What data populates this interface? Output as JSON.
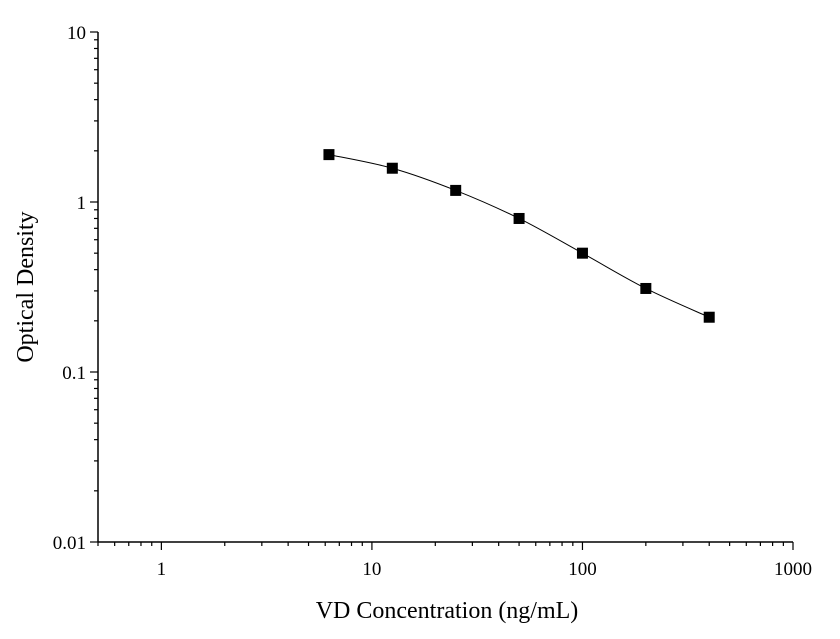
{
  "chart_data": {
    "type": "scatter",
    "title": "",
    "xlabel": "VD Concentration (ng/mL)",
    "ylabel": "Optical Density",
    "x_scale": "log",
    "y_scale": "log",
    "xlim": [
      0.5,
      1000
    ],
    "ylim": [
      0.01,
      10
    ],
    "x_ticks": [
      1,
      10,
      100,
      1000
    ],
    "x_tick_labels": [
      "1",
      "10",
      "100",
      "1000"
    ],
    "y_ticks": [
      0.01,
      0.1,
      1,
      10
    ],
    "y_tick_labels": [
      "0.01",
      "0.1",
      "1",
      "10"
    ],
    "grid": false,
    "legend": "none",
    "series": [
      {
        "marker": "square",
        "color": "#000000",
        "line": "smooth",
        "x": [
          6.25,
          12.5,
          25,
          50,
          100,
          200,
          400
        ],
        "y": [
          1.9,
          1.58,
          1.17,
          0.8,
          0.5,
          0.31,
          0.21
        ]
      }
    ]
  }
}
